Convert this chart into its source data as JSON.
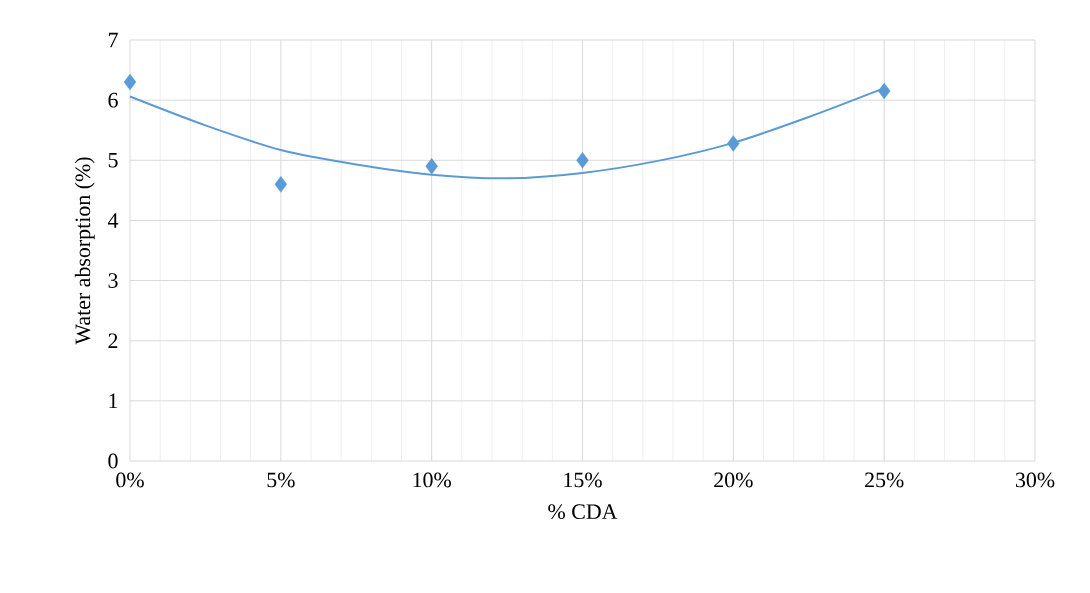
{
  "chart_data": {
    "type": "scatter",
    "xlabel": "% CDA",
    "ylabel": "Water absorption (%)",
    "xlim": [
      0,
      30
    ],
    "xticks": [
      {
        "value": 0,
        "label": "0%"
      },
      {
        "value": 5,
        "label": "5%"
      },
      {
        "value": 10,
        "label": "10%"
      },
      {
        "value": 15,
        "label": "15%"
      },
      {
        "value": 20,
        "label": "20%"
      },
      {
        "value": 25,
        "label": "25%"
      },
      {
        "value": 30,
        "label": "30%"
      }
    ],
    "ylim": [
      0,
      7
    ],
    "yticks": [
      0,
      1,
      2,
      3,
      4,
      5,
      6,
      7
    ],
    "grid": true,
    "series": [
      {
        "color": "#5b9bd5",
        "marker": "diamond",
        "x": [
          0,
          5,
          10,
          15,
          20,
          25
        ],
        "values": [
          6.3,
          4.6,
          4.9,
          5.0,
          5.28,
          6.15
        ]
      },
      {
        "type": "line",
        "color": "#5b9bd5",
        "marker": "none",
        "x": [
          0,
          2.5,
          5,
          7.5,
          10,
          12.5,
          15,
          17.5,
          20,
          22.5,
          25
        ],
        "values": [
          6.06,
          5.58,
          5.17,
          4.93,
          4.76,
          4.7,
          4.79,
          4.99,
          5.29,
          5.72,
          6.2
        ]
      }
    ]
  }
}
